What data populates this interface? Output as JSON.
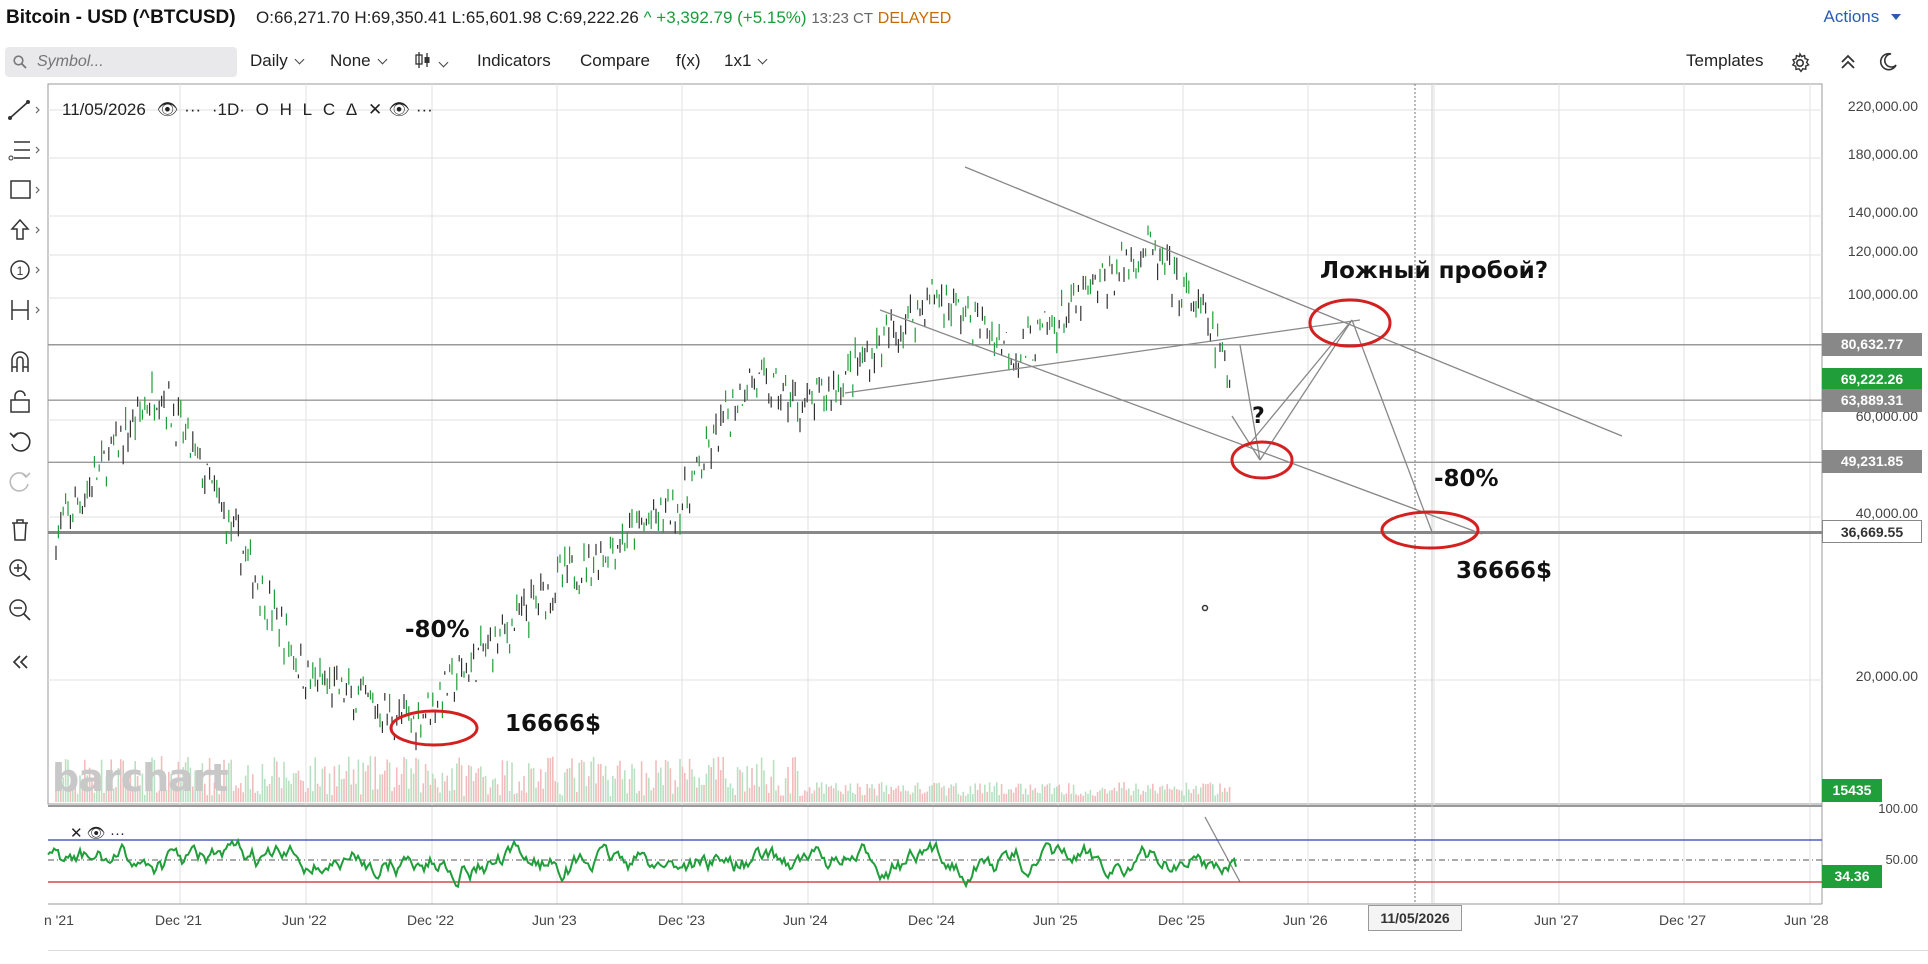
{
  "header": {
    "title": "Bitcoin - USD (^BTCUSD)",
    "open": "O:66,271.70",
    "high": "H:69,350.41",
    "low": "L:65,601.98",
    "close": "C:69,222.26",
    "change": "^ +3,392.79 (+5.15%)",
    "time": "13:23 CT",
    "status": "DELAYED",
    "actions_label": "Actions"
  },
  "toolbar": {
    "symbol_placeholder": "Symbol...",
    "interval": "Daily",
    "overlay": "None",
    "indicators": "Indicators",
    "compare": "Compare",
    "fx": "f(x)",
    "layout": "1x1",
    "templates": "Templates"
  },
  "legend": {
    "date": "11/05/2026",
    "interval": "·1D·",
    "fields": [
      "O",
      "H",
      "L",
      "C",
      "Δ"
    ]
  },
  "price_axis": {
    "labels": [
      "220,000.00",
      "180,000.00",
      "140,000.00",
      "120,000.00",
      "100,000.00",
      "60,000.00",
      "40,000.00",
      "20,000.00"
    ],
    "boxes": [
      {
        "value": "80,632.77",
        "bg": "#888888",
        "fg": "#ffffff"
      },
      {
        "value": "69,222.26",
        "bg": "#1f9e3a",
        "fg": "#ffffff"
      },
      {
        "value": "63,889.31",
        "bg": "#888888",
        "fg": "#ffffff"
      },
      {
        "value": "49,231.85",
        "bg": "#888888",
        "fg": "#ffffff"
      },
      {
        "value": "36,669.55",
        "bg": "#ffffff",
        "fg": "#333333"
      }
    ],
    "volume_box": "15435",
    "rsi_labels": [
      "100.00",
      "50.00"
    ],
    "rsi_box": "34.36"
  },
  "x_axis": {
    "labels": [
      "n '21",
      "Dec '21",
      "Jun '22",
      "Dec '22",
      "Jun '23",
      "Dec '23",
      "Jun '24",
      "Dec '24",
      "Jun '25",
      "Dec '25",
      "Jun '26",
      "Jun '27",
      "Dec '27",
      "Jun '28"
    ],
    "cursor_date": "11/05/2026"
  },
  "annotations": {
    "false_breakout": "Ложный пробой?",
    "question": "?",
    "drop_top": "-80%",
    "target_top": "36666$",
    "drop_bottom": "-80%",
    "target_bottom": "16666$"
  },
  "watermark": "barchart",
  "chart_data": {
    "type": "line",
    "title": "Bitcoin - USD (^BTCUSD)",
    "scale": "log",
    "ylim": [
      15000,
      230000
    ],
    "x": [
      "2021-06",
      "2021-11",
      "2022-06",
      "2022-11",
      "2023-06",
      "2023-12",
      "2024-03",
      "2024-06",
      "2024-12",
      "2025-04",
      "2025-10",
      "2026-01",
      "2026-02"
    ],
    "series": [
      {
        "values": [
          36000,
          68000,
          20000,
          16500,
          30000,
          42000,
          70000,
          62000,
          100000,
          78000,
          122000,
          88000,
          69222
        ]
      }
    ],
    "horizontal_levels": [
      80632.77,
      63889.31,
      49231.85,
      36669.55
    ]
  }
}
